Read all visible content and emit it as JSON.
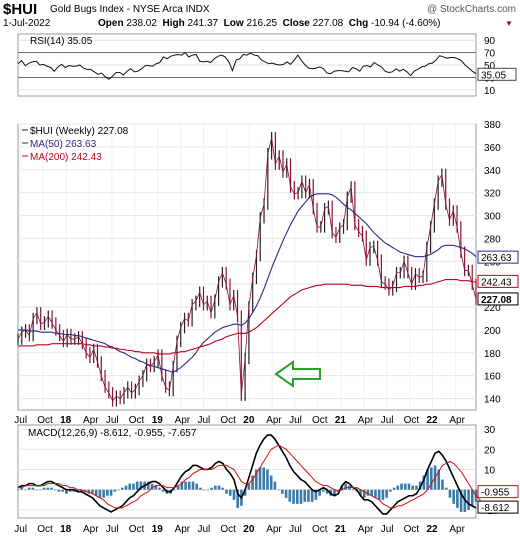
{
  "header": {
    "symbol": "$HUI",
    "name": "Gold Bugs Index - NYSE Arca INDX",
    "brand": "@ StockCharts.com",
    "date": "1-Jul-2022",
    "open_label": "Open",
    "open": "238.02",
    "high_label": "High",
    "high": "241.37",
    "low_label": "Low",
    "low": "216.25",
    "close_label": "Close",
    "close": "227.08",
    "chg_label": "Chg",
    "chg": "-10.94 (-4.60%)",
    "down_marker": "▼"
  },
  "colors": {
    "price": "#8a1030",
    "ma50": "#2a2a8a",
    "ma200": "#c00020",
    "macd_hist": "#3a7aa8",
    "arrow": "#2aa02a"
  },
  "chart_data": [
    {
      "type": "line",
      "title": "RSI(14) 35.05",
      "ylim": [
        0,
        100
      ],
      "y_ticks": [
        "90",
        "70",
        "50",
        "30",
        "10"
      ],
      "reference_lines": [
        70,
        30
      ],
      "current_label": "35.05",
      "series": [
        {
          "name": "RSI(14)",
          "values": [
            52,
            57,
            49,
            53,
            55,
            56,
            50,
            51,
            48,
            46,
            40,
            47,
            51,
            46,
            49,
            48,
            48,
            50,
            45,
            43,
            43,
            39,
            35,
            37,
            31,
            27,
            32,
            38,
            38,
            34,
            40,
            44,
            39,
            40,
            44,
            49,
            49,
            48,
            52,
            54,
            63,
            60,
            64,
            66,
            67,
            66,
            70,
            63,
            66,
            67,
            56,
            55,
            56,
            54,
            60,
            64,
            66,
            63,
            55,
            41,
            58,
            60,
            67,
            66,
            69,
            66,
            65,
            58,
            55,
            52,
            53,
            51,
            50,
            51,
            55,
            51,
            58,
            66,
            57,
            50,
            45,
            44,
            45,
            47,
            44,
            37,
            36,
            40,
            41,
            41,
            40,
            39,
            46,
            44,
            40,
            48,
            49,
            47,
            54,
            50,
            47,
            40,
            38,
            39,
            44,
            40,
            43,
            39,
            33,
            40,
            43,
            47,
            48,
            52,
            53,
            58,
            65,
            63,
            61,
            62,
            62,
            60,
            57,
            50,
            45,
            40,
            36
          ]
        }
      ]
    },
    {
      "type": "line",
      "title": "$HUI (Weekly) 227.08",
      "ylim": [
        130,
        380
      ],
      "y_ticks": [
        "380",
        "360",
        "340",
        "320",
        "300",
        "280",
        "260",
        "240",
        "220",
        "200",
        "180",
        "160",
        "140"
      ],
      "x_labels": [
        "Jul",
        "Oct",
        "18",
        "Apr",
        "Jul",
        "Oct",
        "19",
        "Apr",
        "Jul",
        "Oct",
        "20",
        "Apr",
        "Jul",
        "Oct",
        "21",
        "Apr",
        "Jul",
        "Oct",
        "22",
        "Apr"
      ],
      "price_labels": [
        "263.63",
        "242.43",
        "227.08"
      ],
      "annotation": "green arrow pointing to March 2020 low",
      "series": [
        {
          "name": "$HUI (Weekly) 227.08",
          "values": [
            192,
            198,
            200,
            195,
            210,
            215,
            205,
            207,
            212,
            206,
            200,
            195,
            190,
            196,
            192,
            192,
            194,
            188,
            180,
            176,
            183,
            172,
            160,
            150,
            145,
            138,
            142,
            140,
            145,
            150,
            145,
            148,
            155,
            160,
            170,
            168,
            172,
            178,
            160,
            150,
            147,
            168,
            190,
            202,
            210,
            208,
            222,
            225,
            233,
            222,
            225,
            215,
            226,
            242,
            250,
            240,
            222,
            230,
            212,
            143,
            175,
            220,
            245,
            265,
            298,
            310,
            354,
            368,
            345,
            352,
            338,
            345,
            325,
            319,
            320,
            330,
            320,
            327,
            306,
            290,
            290,
            306,
            308,
            285,
            281,
            289,
            292,
            316,
            325,
            292,
            286,
            282,
            261,
            272,
            273,
            261,
            242,
            240,
            235,
            238,
            250,
            250,
            260,
            250,
            240,
            249,
            246,
            247,
            272,
            290,
            310,
            330,
            336,
            310,
            296,
            304,
            290,
            268,
            252,
            252,
            240,
            227
          ]
        },
        {
          "name": "MA(50) 263.63",
          "values": [
            200,
            200,
            200,
            199,
            199,
            199,
            198,
            198,
            198,
            198,
            197,
            197,
            196,
            196,
            196,
            195,
            195,
            194,
            193,
            192,
            191,
            190,
            189,
            188,
            186,
            185,
            183,
            181,
            180,
            178,
            176,
            175,
            173,
            172,
            170,
            169,
            168,
            167,
            166,
            165,
            164,
            163,
            165,
            167,
            170,
            173,
            176,
            180,
            185,
            189,
            192,
            195,
            198,
            200,
            202,
            203,
            204,
            205,
            205,
            204,
            206,
            210,
            215,
            221,
            228,
            236,
            245,
            254,
            262,
            270,
            278,
            285,
            292,
            298,
            304,
            308,
            312,
            316,
            318,
            319,
            319,
            319,
            319,
            318,
            316,
            313,
            310,
            307,
            305,
            302,
            299,
            296,
            293,
            289,
            285,
            282,
            279,
            276,
            274,
            272,
            270,
            268,
            267,
            266,
            265,
            264,
            264,
            264,
            265,
            266,
            268,
            270,
            273,
            274,
            274,
            274,
            273,
            272,
            271,
            269,
            267,
            264
          ]
        },
        {
          "name": "MA(200) 242.43",
          "values": [
            186,
            186,
            186,
            186,
            186,
            187,
            187,
            187,
            187,
            188,
            188,
            188,
            188,
            188,
            188,
            188,
            188,
            188,
            187,
            187,
            186,
            186,
            186,
            185,
            185,
            184,
            184,
            183,
            183,
            182,
            182,
            181,
            181,
            180,
            180,
            180,
            180,
            179,
            179,
            179,
            179,
            180,
            180,
            181,
            181,
            182,
            183,
            184,
            185,
            186,
            187,
            188,
            190,
            191,
            192,
            194,
            195,
            196,
            197,
            197,
            197,
            198,
            200,
            202,
            205,
            208,
            211,
            214,
            217,
            220,
            223,
            226,
            229,
            231,
            233,
            235,
            236,
            237,
            238,
            239,
            239,
            240,
            240,
            240,
            240,
            240,
            240,
            240,
            239,
            239,
            239,
            239,
            238,
            238,
            238,
            238,
            237,
            237,
            237,
            237,
            237,
            237,
            238,
            238,
            238,
            238,
            239,
            239,
            240,
            240,
            241,
            242,
            243,
            244,
            244,
            244,
            244,
            243,
            243,
            243,
            242,
            242
          ]
        }
      ]
    },
    {
      "type": "line",
      "title": "MACD(12,26,9) -8.612, -0.955, -7.657",
      "ylim": [
        -14,
        32
      ],
      "y_ticks": [
        "30",
        "20",
        "10",
        "0",
        "-10"
      ],
      "x_labels": [
        "Jul",
        "Oct",
        "18",
        "Apr",
        "Jul",
        "Oct",
        "19",
        "Apr",
        "Jul",
        "Oct",
        "20",
        "Apr",
        "Jul",
        "Oct",
        "21",
        "Apr",
        "Jul",
        "Oct",
        "22",
        "Apr"
      ],
      "value_labels": [
        "-0.955",
        "-8.612"
      ],
      "series": [
        {
          "name": "MACD(12,26,9)",
          "values": [
            1,
            2,
            2,
            3,
            3,
            2,
            2,
            3,
            4,
            4,
            3,
            2,
            1,
            0,
            0,
            0,
            -1,
            -1,
            -2,
            -3,
            -4,
            -6,
            -8,
            -9,
            -10,
            -11,
            -10,
            -9,
            -8,
            -6,
            -4,
            -3,
            -1,
            1,
            2,
            3,
            4,
            4,
            3,
            1,
            -1,
            -1,
            1,
            4,
            7,
            9,
            10,
            12,
            12,
            11,
            10,
            10,
            11,
            13,
            14,
            13,
            10,
            8,
            5,
            -2,
            -4,
            0,
            6,
            12,
            18,
            22,
            25,
            27,
            27,
            25,
            22,
            19,
            16,
            12,
            9,
            7,
            5,
            4,
            2,
            0,
            -1,
            0,
            1,
            0,
            -2,
            -3,
            -2,
            2,
            4,
            3,
            1,
            0,
            -3,
            -5,
            -5,
            -6,
            -8,
            -10,
            -12,
            -12,
            -10,
            -8,
            -6,
            -5,
            -4,
            -3,
            -3,
            -2,
            1,
            5,
            10,
            14,
            18,
            19,
            17,
            14,
            10,
            6,
            2,
            -2,
            -5,
            -7,
            -8,
            -9
          ]
        },
        {
          "name": "Signal",
          "values": [
            1,
            1,
            2,
            2,
            2,
            2,
            2,
            2,
            3,
            3,
            3,
            3,
            2,
            2,
            1,
            1,
            0,
            0,
            -1,
            -1,
            -2,
            -3,
            -4,
            -5,
            -7,
            -8,
            -9,
            -9,
            -9,
            -8,
            -7,
            -6,
            -5,
            -3,
            -2,
            -1,
            1,
            2,
            2,
            2,
            1,
            1,
            1,
            2,
            3,
            5,
            6,
            8,
            9,
            10,
            10,
            10,
            10,
            11,
            12,
            12,
            12,
            11,
            10,
            7,
            4,
            3,
            3,
            5,
            8,
            11,
            14,
            17,
            20,
            21,
            22,
            21,
            20,
            18,
            16,
            14,
            12,
            10,
            8,
            6,
            4,
            3,
            2,
            2,
            1,
            0,
            -1,
            0,
            1,
            1,
            1,
            1,
            0,
            -1,
            -2,
            -3,
            -4,
            -5,
            -7,
            -8,
            -9,
            -9,
            -8,
            -8,
            -7,
            -6,
            -5,
            -4,
            -3,
            -2,
            0,
            3,
            6,
            9,
            12,
            13,
            14,
            13,
            11,
            9,
            6,
            3,
            0,
            -3,
            -5,
            -7
          ]
        }
      ]
    }
  ]
}
